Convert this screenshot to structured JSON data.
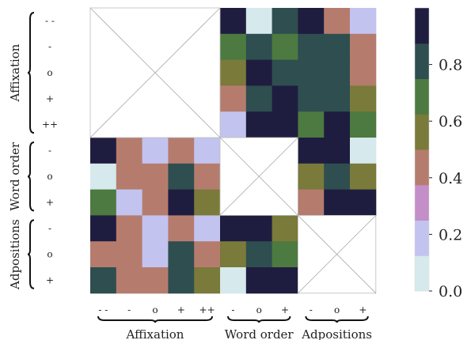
{
  "chart_data": {
    "type": "heatmap",
    "title": "",
    "levels": [
      "--",
      "-",
      "o",
      "+",
      "++",
      "-",
      "o",
      "+",
      "-",
      "o",
      "+"
    ],
    "row_labels": [
      "- -",
      "-",
      "o",
      "+",
      "++",
      "-",
      "o",
      "+",
      "-",
      "o",
      "+"
    ],
    "col_labels": [
      "- -",
      "-",
      "o",
      "+",
      "++",
      "-",
      "o",
      "+",
      "-",
      "o",
      "+"
    ],
    "groups": [
      {
        "name": "Affixation",
        "size": 5
      },
      {
        "name": "Word order",
        "size": 3
      },
      {
        "name": "Adpositions",
        "size": 3
      }
    ],
    "diagonal_blocks": "crossed-out (no values)",
    "values": [
      [
        null,
        null,
        null,
        null,
        null,
        0.96,
        0.06,
        0.81,
        0.96,
        0.47,
        0.24
      ],
      [
        null,
        null,
        null,
        null,
        null,
        0.68,
        0.82,
        0.68,
        0.82,
        0.82,
        0.38
      ],
      [
        null,
        null,
        null,
        null,
        null,
        0.61,
        0.96,
        0.82,
        0.82,
        0.82,
        0.47
      ],
      [
        null,
        null,
        null,
        null,
        null,
        0.38,
        0.82,
        0.96,
        0.82,
        0.82,
        0.61
      ],
      [
        null,
        null,
        null,
        null,
        null,
        0.24,
        0.96,
        0.96,
        0.68,
        0.96,
        0.68
      ],
      [
        0.96,
        0.47,
        0.24,
        0.47,
        0.24,
        null,
        null,
        null,
        0.96,
        0.96,
        0.06
      ],
      [
        0.06,
        0.47,
        0.47,
        0.82,
        0.47,
        null,
        null,
        null,
        0.61,
        0.82,
        0.61
      ],
      [
        0.68,
        0.24,
        0.38,
        0.96,
        0.61,
        null,
        null,
        null,
        0.38,
        0.96,
        0.96
      ],
      [
        0.96,
        0.38,
        0.24,
        0.47,
        0.24,
        0.96,
        0.96,
        0.61,
        null,
        null,
        null
      ],
      [
        0.38,
        0.38,
        0.24,
        0.82,
        0.47,
        0.61,
        0.82,
        0.68,
        null,
        null,
        null
      ],
      [
        0.82,
        0.38,
        0.38,
        0.82,
        0.61,
        0.06,
        0.96,
        0.96,
        null,
        null,
        null
      ]
    ],
    "colorbar": {
      "colormap": "cubehelix-like (light blue to dark navy)",
      "range": [
        0.0,
        1.0
      ],
      "ticks": [
        "0.0",
        "0.2",
        "0.4",
        "0.6",
        "0.8"
      ],
      "tick_values": [
        0.0,
        0.2,
        0.4,
        0.6,
        0.8
      ],
      "colors": [
        "#d6e9ec",
        "#c3c3f0",
        "#c48ec8",
        "#b57c6e",
        "#7a7a3a",
        "#4c7a40",
        "#2f4e50",
        "#1f1d3f"
      ]
    }
  }
}
